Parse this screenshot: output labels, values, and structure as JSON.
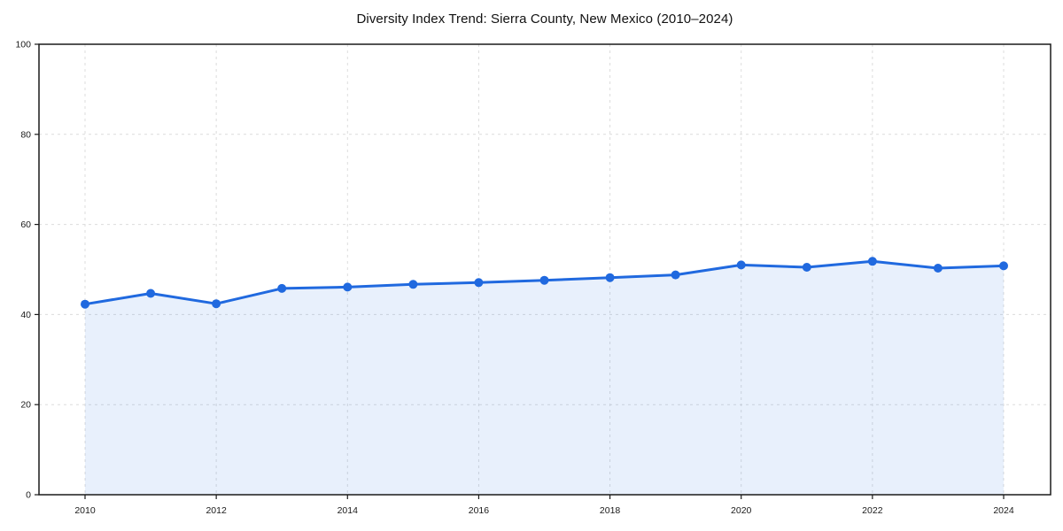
{
  "chart_data": {
    "type": "line",
    "title": "Diversity Index Trend: Sierra County, New Mexico (2010–2024)",
    "x": [
      2010,
      2011,
      2012,
      2013,
      2014,
      2015,
      2016,
      2017,
      2018,
      2019,
      2020,
      2021,
      2022,
      2023,
      2024
    ],
    "values": [
      42.3,
      44.7,
      42.4,
      45.8,
      46.1,
      46.7,
      47.1,
      47.6,
      48.2,
      48.8,
      51.0,
      50.5,
      51.8,
      50.3,
      50.8
    ],
    "xticks": [
      2010,
      2012,
      2014,
      2016,
      2018,
      2020,
      2022,
      2024
    ],
    "yticks": [
      0,
      20,
      40,
      60,
      80,
      100
    ],
    "ylim": [
      0,
      100
    ],
    "xlabel": "",
    "ylabel": "",
    "legend": "none",
    "grid": "dashed",
    "colors": {
      "line": "#2069df",
      "marker": "#2069df",
      "area_fill": "rgba(32, 105, 223, 0.10)",
      "gridline": "#dcdcdc",
      "axis": "#1a1a1a",
      "text": "#1a1a1a",
      "background": "#ffffff"
    }
  }
}
